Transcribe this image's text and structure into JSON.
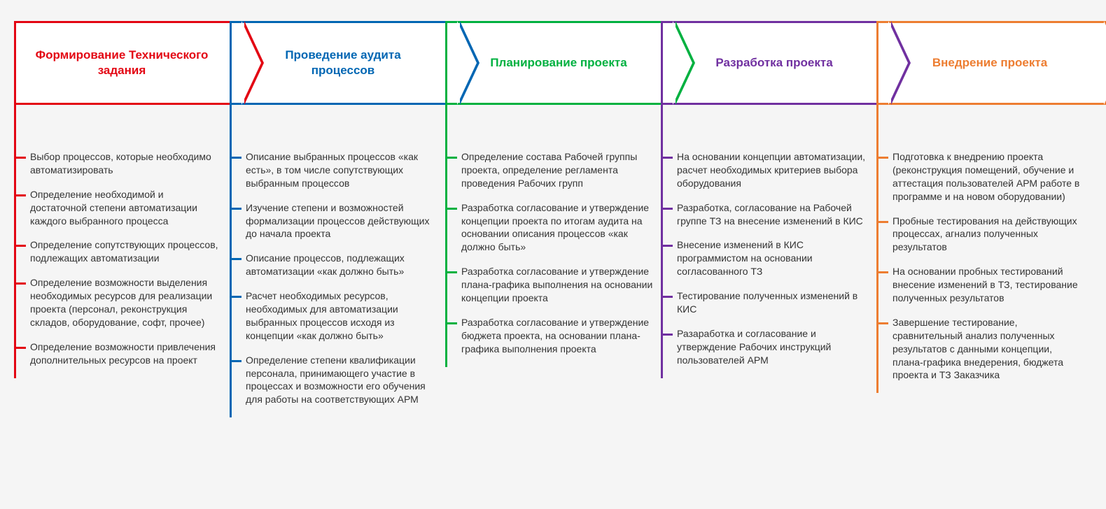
{
  "type": "flowchart",
  "background_color": "#f5f5f5",
  "box_background": "#ffffff",
  "border_width": 3,
  "title_fontsize": 17,
  "item_fontsize": 14,
  "item_color": "#333333",
  "stages": [
    {
      "color": "#e30613",
      "title": "Формирование Технического задания",
      "items": [
        "Выбор процессов, которые необходимо автоматизировать",
        "Определение необходимой и достаточной степени автоматизации каждого выбранного процесса",
        "Определение сопутствующих процессов, подлежащих автоматизации",
        "Определение возможности выделения необходимых ресурсов для реализации проекта (персонал, реконструкция складов, оборудование, софт, прочее)",
        "Определение возможности привлечения дополнительных ресурсов на проект"
      ]
    },
    {
      "color": "#0066b3",
      "title": "Проведение аудита процессов",
      "items": [
        "Описание выбранных процессов «как есть», в том числе сопутствующих выбранным процессов",
        "Изучение степени и возможностей формализации процессов действующих до начала проекта",
        "Описание процессов, подлежащих автоматизации «как должно быть»",
        "Расчет необходимых ресурсов, необходимых для автоматизации выбранных процессов исходя из концепции «как должно быть»",
        "Определение степени квалификации персонала, принимающего участие в процессах и возможности его обучения для работы на соответствующих АРМ"
      ]
    },
    {
      "color": "#00b140",
      "title": "Планирование проекта",
      "items": [
        "Определение состава Рабочей группы проекта, определение регламента проведения Рабочих групп",
        "Разработка согласование и утверждение концепции проекта по итогам аудита на основании описания процессов «как должно быть»",
        "Разработка согласование и утверждение плана-графика выполнения на основании концепции проекта",
        "Разработка согласование и утверждение бюджета проекта, на основании плана-графика выполнения проекта"
      ]
    },
    {
      "color": "#7030a0",
      "title": "Разработка проекта",
      "items": [
        "На основании концепции автоматизации, расчет необходимых критериев выбора оборудования",
        "Разработка, согласование на Рабочей группе ТЗ на внесение изменений в КИС",
        "Внесение изменений в КИС программистом на основании согласованного ТЗ",
        "Тестирование полученных изменений в КИС",
        "Разаработка и согласование и утверждение Рабочих инструкций пользователей АРМ"
      ]
    },
    {
      "color": "#ed7d31",
      "title": "Внедрение проекта",
      "items": [
        "Подготовка к внедрению проекта (реконструкция помещений, обучение и аттестация пользователей АРМ работе в программе и на новом оборудовании)",
        "Пробные тестирования на действующих процессах, агнализ полученных результатов",
        "На основании пробных тестирований внесение изменений в ТЗ, тестирование полученных результатов",
        "Завершение тестирование, сравнительный анализ полученных результатов с данными концепции, плана-графика внедерения, бюджета проекта и ТЗ Заказчика"
      ]
    }
  ]
}
